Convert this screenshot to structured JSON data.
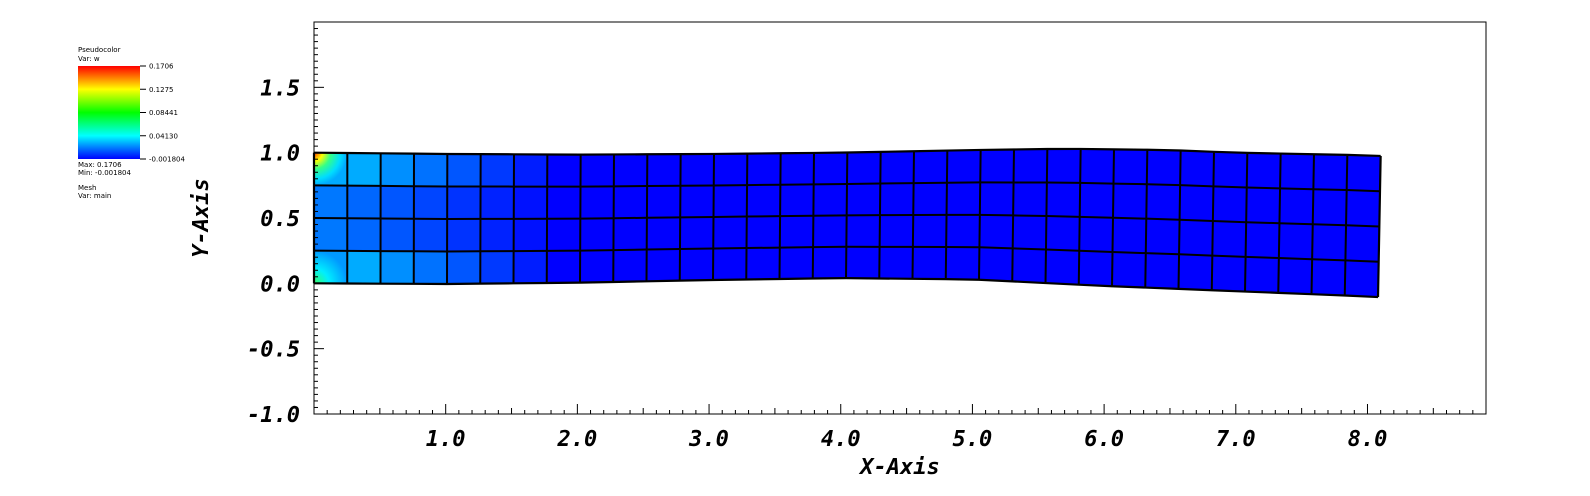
{
  "legend": {
    "plot_title": "Pseudocolor",
    "var_line": "Var: w",
    "max_line": "Max: 0.1706",
    "min_line": "Min: -0.001804",
    "mesh_title": "Mesh",
    "mesh_var_line": "Var: main",
    "colorbar_labels": [
      "0.1706",
      "0.1275",
      "0.08441",
      "0.04130",
      "-0.001804"
    ],
    "colormap": [
      "#ff0000",
      "#ffff00",
      "#00ff00",
      "#00ffff",
      "#0000ff"
    ]
  },
  "chart_data": {
    "type": "heatmap",
    "xlabel": "X-Axis",
    "ylabel": "Y-Axis",
    "xlim": [
      0,
      8.9
    ],
    "ylim": [
      -1.0,
      2.0
    ],
    "x_tick_labels": [
      "1.0",
      "2.0",
      "3.0",
      "4.0",
      "5.0",
      "6.0",
      "7.0",
      "8.0"
    ],
    "x_tick_values": [
      1,
      2,
      3,
      4,
      5,
      6,
      7,
      8
    ],
    "y_tick_labels": [
      "1.5",
      "1.0",
      "0.5",
      "0.0",
      "-0.5",
      "-1.0"
    ],
    "y_tick_values": [
      1.5,
      1.0,
      0.5,
      0.0,
      -0.5,
      -1.0
    ],
    "mesh": {
      "cols": 32,
      "rows": 4,
      "top_edge": [
        [
          0,
          1.0
        ],
        [
          1.0,
          0.99
        ],
        [
          2.0,
          0.985
        ],
        [
          3.0,
          0.99
        ],
        [
          4.0,
          1.0
        ],
        [
          5.0,
          1.02
        ],
        [
          5.7,
          1.03
        ],
        [
          6.5,
          1.02
        ],
        [
          7.0,
          1.0
        ],
        [
          8.0,
          0.98
        ],
        [
          8.1,
          0.975
        ]
      ],
      "bottom_edge": [
        [
          0,
          0.0
        ],
        [
          1.0,
          -0.005
        ],
        [
          2.0,
          0.005
        ],
        [
          3.0,
          0.025
        ],
        [
          4.0,
          0.04
        ],
        [
          5.0,
          0.03
        ],
        [
          6.0,
          -0.02
        ],
        [
          7.0,
          -0.06
        ],
        [
          8.0,
          -0.1
        ],
        [
          8.08,
          -0.105
        ]
      ],
      "hot_cells": [
        {
          "col": 0,
          "row": 3,
          "value": 0.17
        },
        {
          "col": 0,
          "row": 0,
          "value": 0.07
        }
      ],
      "value_min": -0.001804,
      "value_max": 0.1706
    }
  }
}
